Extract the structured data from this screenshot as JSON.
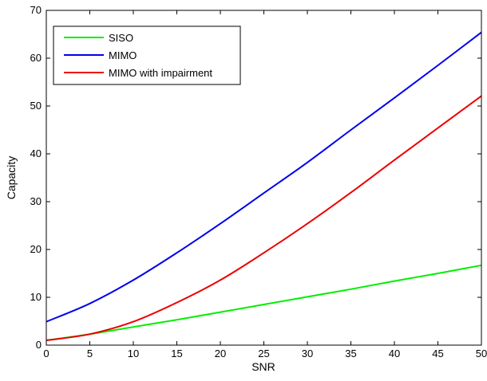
{
  "chart_data": {
    "type": "line",
    "title": "",
    "xlabel": "SNR",
    "ylabel": "Capacity",
    "xlim": [
      0,
      50
    ],
    "ylim": [
      0,
      70
    ],
    "xticks": [
      "0",
      "5",
      "10",
      "15",
      "20",
      "25",
      "30",
      "35",
      "40",
      "45",
      "50"
    ],
    "yticks": [
      "0",
      "10",
      "20",
      "30",
      "40",
      "50",
      "60",
      "70"
    ],
    "grid": false,
    "legend_position": "top-left",
    "x": [
      0,
      5,
      10,
      15,
      20,
      25,
      30,
      35,
      40,
      45,
      50
    ],
    "series": [
      {
        "name": "SISO",
        "color": "#00ee00",
        "values": [
          1.0,
          2.3,
          3.8,
          5.3,
          6.9,
          8.5,
          10.1,
          11.7,
          13.4,
          15.0,
          16.7
        ]
      },
      {
        "name": "MIMO",
        "color": "#0000ee",
        "values": [
          4.9,
          8.7,
          13.6,
          19.3,
          25.4,
          31.8,
          38.2,
          45.0,
          51.7,
          58.5,
          65.4
        ]
      },
      {
        "name": "MIMO with impairment",
        "color": "#ee0000",
        "values": [
          1.0,
          2.3,
          4.9,
          8.9,
          13.6,
          19.3,
          25.4,
          31.9,
          38.7,
          45.4,
          52.1
        ]
      }
    ]
  }
}
